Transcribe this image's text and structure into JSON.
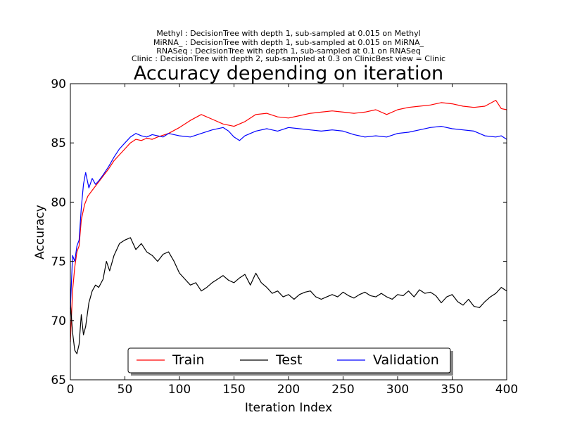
{
  "chart_data": {
    "type": "line",
    "subtitle_lines": [
      "Methyl : DecisionTree with depth 1,  sub-sampled at 0.015 on Methyl",
      "MiRNA_ : DecisionTree with depth 1,  sub-sampled at 0.015 on MiRNA_",
      "RNASeq : DecisionTree with depth 1,  sub-sampled at 0.1 on RNASeq",
      "Clinic : DecisionTree with depth 2,  sub-sampled at 0.3 on ClinicBest view = Clinic"
    ],
    "title": "Accuracy depending on iteration",
    "xlabel": "Iteration Index",
    "ylabel": "Accuracy",
    "xlim": [
      0,
      400
    ],
    "ylim": [
      65,
      90
    ],
    "xticks": [
      0,
      50,
      100,
      150,
      200,
      250,
      300,
      350,
      400
    ],
    "yticks": [
      65,
      70,
      75,
      80,
      85,
      90
    ],
    "grid": false,
    "legend_position": "bottom-center",
    "series": [
      {
        "name": "Train",
        "color": "#ff0000",
        "x": [
          0,
          2,
          4,
          6,
          8,
          10,
          13,
          16,
          20,
          25,
          30,
          35,
          40,
          45,
          50,
          55,
          60,
          65,
          70,
          75,
          80,
          90,
          100,
          110,
          120,
          130,
          140,
          150,
          160,
          170,
          180,
          190,
          200,
          210,
          220,
          230,
          240,
          250,
          260,
          270,
          280,
          290,
          300,
          310,
          320,
          330,
          340,
          350,
          360,
          370,
          380,
          390,
          395,
          400
        ],
        "y": [
          68.2,
          72.5,
          74.5,
          75.8,
          76.3,
          78.5,
          79.8,
          80.5,
          81.0,
          81.6,
          82.2,
          82.8,
          83.5,
          84.0,
          84.5,
          85.0,
          85.3,
          85.2,
          85.4,
          85.3,
          85.5,
          85.8,
          86.3,
          86.9,
          87.4,
          87.0,
          86.6,
          86.4,
          86.8,
          87.4,
          87.5,
          87.2,
          87.1,
          87.3,
          87.5,
          87.6,
          87.7,
          87.6,
          87.5,
          87.6,
          87.8,
          87.4,
          87.8,
          88.0,
          88.1,
          88.2,
          88.4,
          88.3,
          88.1,
          88.0,
          88.1,
          88.6,
          87.9,
          87.8
        ]
      },
      {
        "name": "Test",
        "color": "#000000",
        "x": [
          0,
          2,
          4,
          6,
          8,
          10,
          12,
          14,
          17,
          20,
          23,
          26,
          30,
          33,
          36,
          40,
          45,
          50,
          55,
          60,
          65,
          70,
          75,
          80,
          85,
          90,
          95,
          100,
          105,
          110,
          115,
          120,
          125,
          130,
          135,
          140,
          145,
          150,
          155,
          160,
          165,
          170,
          175,
          180,
          185,
          190,
          195,
          200,
          205,
          210,
          215,
          220,
          225,
          230,
          235,
          240,
          245,
          250,
          255,
          260,
          265,
          270,
          275,
          280,
          285,
          290,
          295,
          300,
          305,
          310,
          315,
          320,
          325,
          330,
          335,
          340,
          345,
          350,
          355,
          360,
          365,
          370,
          375,
          380,
          385,
          390,
          395,
          400
        ],
        "y": [
          71.5,
          69.0,
          67.5,
          67.2,
          68.0,
          70.5,
          68.8,
          69.5,
          71.5,
          72.5,
          73.0,
          72.8,
          73.5,
          75.0,
          74.2,
          75.5,
          76.5,
          76.8,
          77.0,
          76.0,
          76.5,
          75.8,
          75.5,
          75.0,
          75.6,
          75.8,
          75.0,
          74.0,
          73.5,
          73.0,
          73.2,
          72.5,
          72.8,
          73.2,
          73.5,
          73.8,
          73.4,
          73.2,
          73.6,
          73.9,
          73.0,
          74.0,
          73.2,
          72.8,
          72.3,
          72.5,
          72.0,
          72.2,
          71.8,
          72.2,
          72.4,
          72.5,
          72.0,
          71.8,
          72.0,
          72.2,
          72.0,
          72.4,
          72.1,
          71.9,
          72.2,
          72.4,
          72.1,
          72.0,
          72.3,
          72.0,
          71.8,
          72.2,
          72.1,
          72.5,
          72.0,
          72.6,
          72.3,
          72.4,
          72.1,
          71.5,
          72.0,
          72.2,
          71.6,
          71.3,
          71.8,
          71.2,
          71.1,
          71.6,
          72.0,
          72.3,
          72.8,
          72.5
        ]
      },
      {
        "name": "Validation",
        "color": "#0000ff",
        "x": [
          0,
          2,
          4,
          6,
          8,
          10,
          12,
          14,
          17,
          20,
          23,
          26,
          30,
          35,
          40,
          45,
          50,
          55,
          60,
          65,
          70,
          75,
          80,
          85,
          90,
          95,
          100,
          110,
          120,
          130,
          140,
          145,
          150,
          155,
          160,
          170,
          180,
          190,
          200,
          210,
          220,
          230,
          240,
          250,
          260,
          270,
          280,
          290,
          300,
          310,
          320,
          330,
          340,
          350,
          360,
          370,
          380,
          390,
          395,
          400
        ],
        "y": [
          71.0,
          75.5,
          75.0,
          76.3,
          76.8,
          79.5,
          81.5,
          82.5,
          81.2,
          82.0,
          81.5,
          81.8,
          82.3,
          83.0,
          83.8,
          84.5,
          85.0,
          85.5,
          85.8,
          85.6,
          85.5,
          85.7,
          85.6,
          85.5,
          85.8,
          85.7,
          85.6,
          85.5,
          85.8,
          86.1,
          86.3,
          86.0,
          85.5,
          85.2,
          85.6,
          86.0,
          86.2,
          86.0,
          86.3,
          86.2,
          86.1,
          86.0,
          86.1,
          86.0,
          85.7,
          85.5,
          85.6,
          85.5,
          85.8,
          85.9,
          86.1,
          86.3,
          86.4,
          86.2,
          86.1,
          86.0,
          85.6,
          85.5,
          85.6,
          85.3
        ]
      }
    ]
  }
}
